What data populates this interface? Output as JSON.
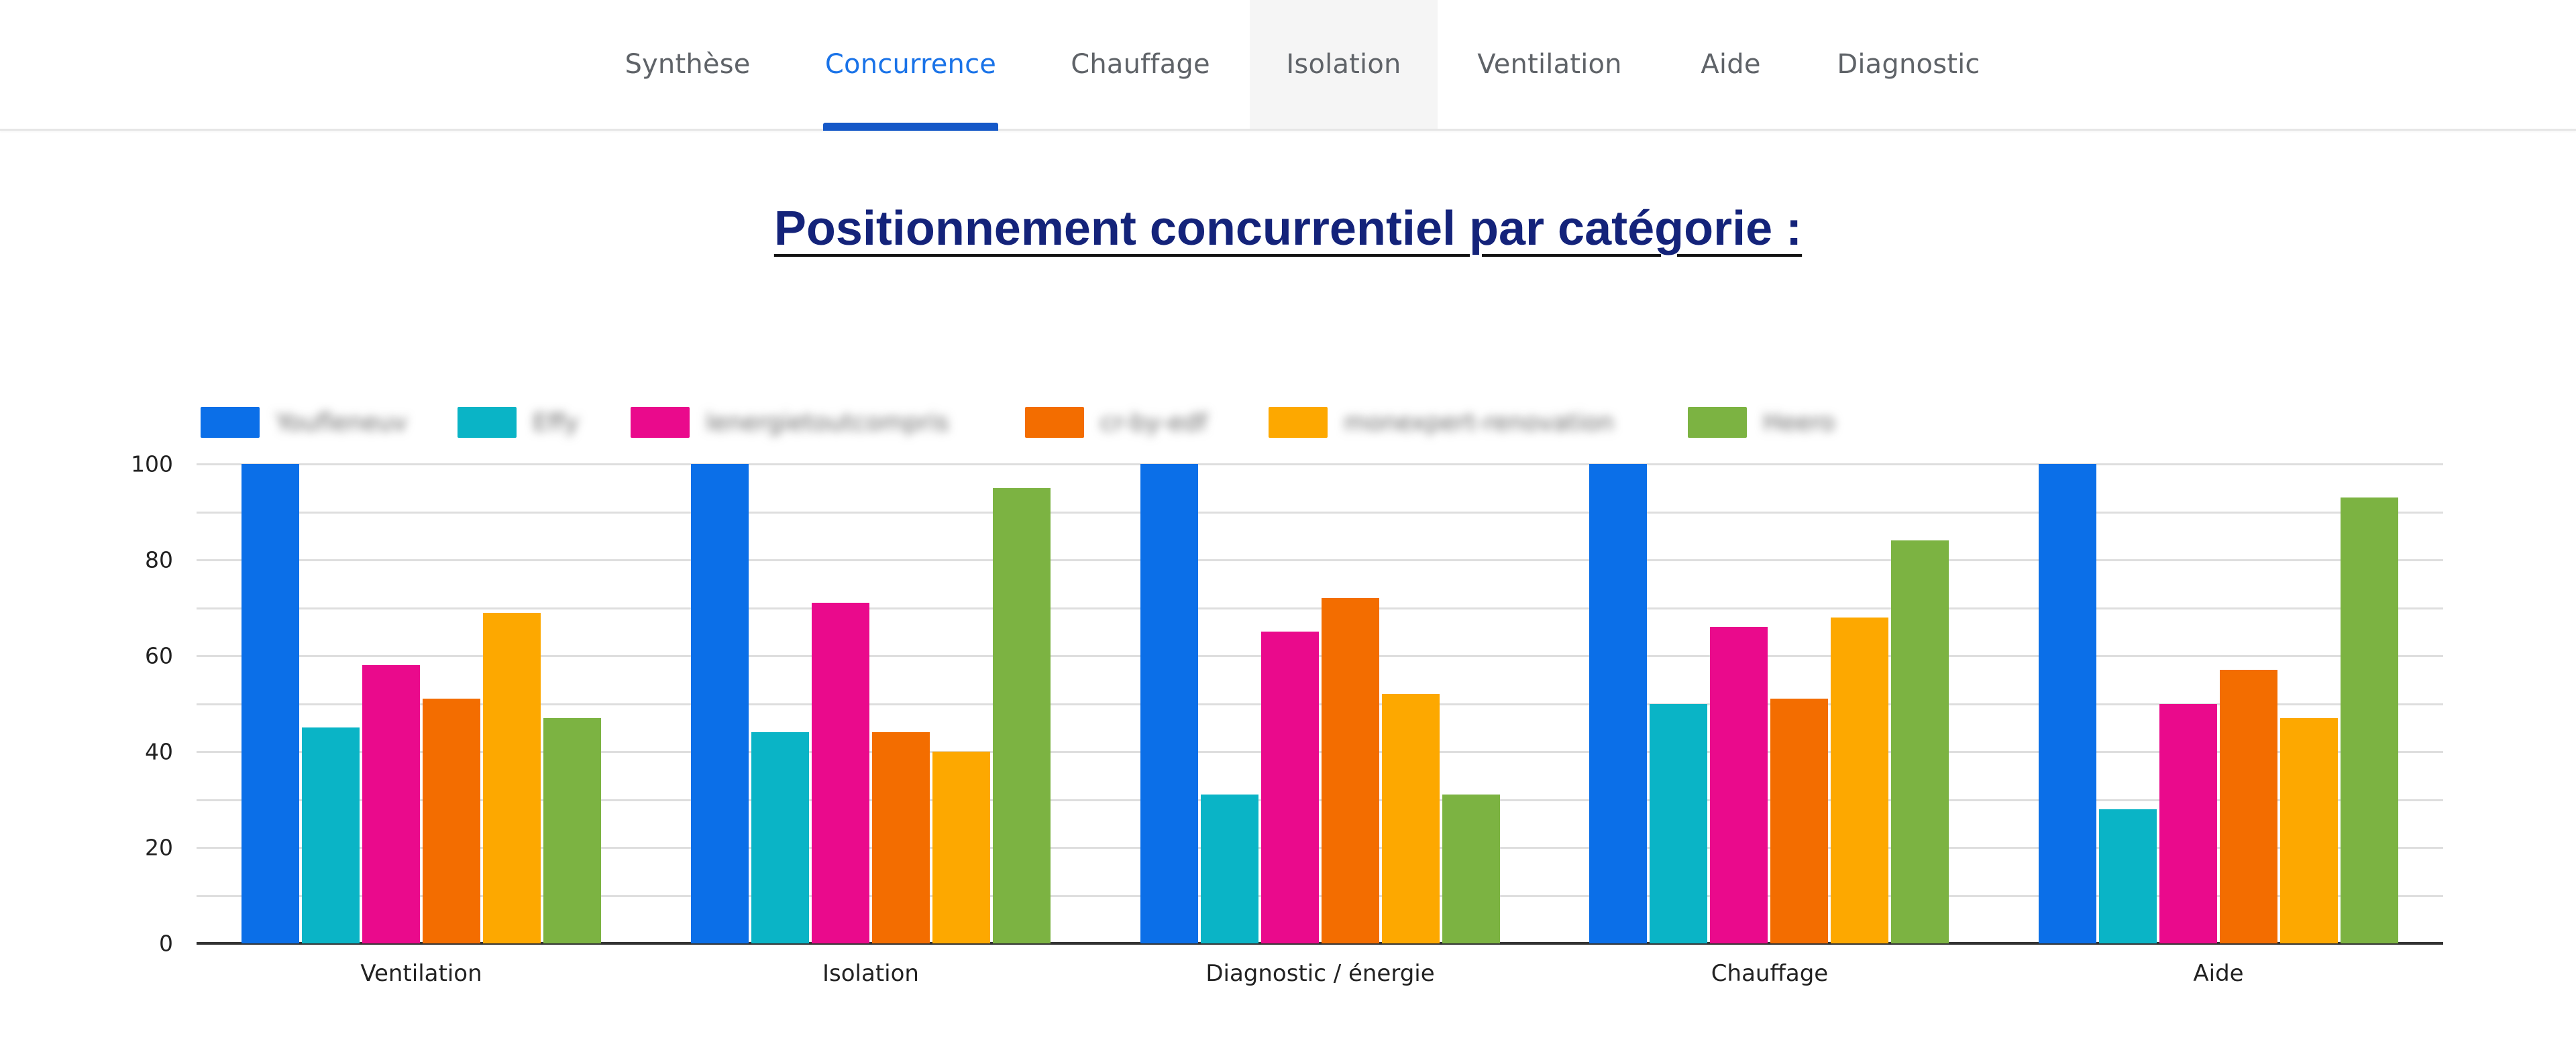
{
  "nav": {
    "tabs": [
      {
        "label": "Synthèse",
        "state": "normal"
      },
      {
        "label": "Concurrence",
        "state": "active"
      },
      {
        "label": "Chauffage",
        "state": "normal"
      },
      {
        "label": "Isolation",
        "state": "hover"
      },
      {
        "label": "Ventilation",
        "state": "normal"
      },
      {
        "label": "Aide",
        "state": "normal"
      },
      {
        "label": "Diagnostic",
        "state": "normal"
      }
    ],
    "active_color": "#1a73e8"
  },
  "page": {
    "title": "Positionnement concurrentiel par catégorie :"
  },
  "legend": [
    {
      "label": "Youfleneuv",
      "color": "#0b6fe8",
      "blurred": true
    },
    {
      "label": "Effy",
      "color": "#0ab4c6",
      "blurred": true
    },
    {
      "label": "lenergietoutcompris",
      "color": "#ea0a8c",
      "blurred": true
    },
    {
      "label": "cr-by-edf",
      "color": "#f36d00",
      "blurred": true
    },
    {
      "label": "monexpert-renovation",
      "color": "#fda800",
      "blurred": true
    },
    {
      "label": "Heero",
      "color": "#7cb342",
      "blurred": true
    }
  ],
  "y_ticks": [
    "100",
    "80",
    "60",
    "40",
    "20",
    "0"
  ],
  "chart_data": {
    "type": "bar",
    "title": "Positionnement concurrentiel par catégorie :",
    "xlabel": "",
    "ylabel": "",
    "ylim": [
      0,
      100
    ],
    "y_ticks": [
      0,
      20,
      40,
      60,
      80,
      100
    ],
    "grid": true,
    "minor_grid_step": 10,
    "legend_position": "top",
    "categories": [
      "Ventilation",
      "Isolation",
      "Diagnostic / énergie",
      "Chauffage",
      "Aide"
    ],
    "series": [
      {
        "name": "Youfleneuv (blurred)",
        "color": "#0b6fe8",
        "values": [
          100,
          100,
          100,
          100,
          100
        ]
      },
      {
        "name": "Effy (blurred)",
        "color": "#0ab4c6",
        "values": [
          45,
          44,
          31,
          50,
          28
        ]
      },
      {
        "name": "lenergietoutcompris (blurred)",
        "color": "#ea0a8c",
        "values": [
          58,
          71,
          65,
          66,
          50
        ]
      },
      {
        "name": "cr-by-edf (blurred)",
        "color": "#f36d00",
        "values": [
          51,
          44,
          72,
          51,
          57
        ]
      },
      {
        "name": "monexpert-renovation (blurred)",
        "color": "#fda800",
        "values": [
          69,
          40,
          52,
          68,
          47
        ]
      },
      {
        "name": "Heero (blurred)",
        "color": "#7cb342",
        "values": [
          47,
          95,
          31,
          84,
          93
        ]
      }
    ]
  }
}
